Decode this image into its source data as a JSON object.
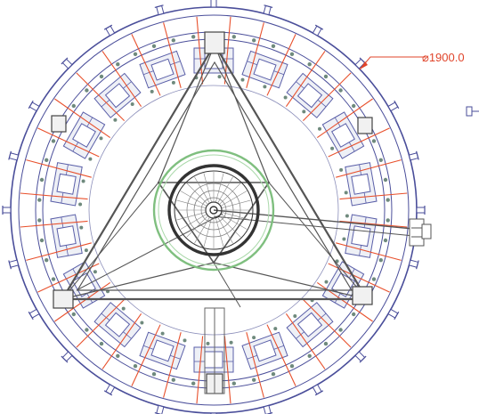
{
  "drawing": {
    "dimension_label": "⌀1900.0",
    "colors": {
      "background": "#ffffff",
      "ring_stroke": "#4a4e9a",
      "frame_stroke": "#555555",
      "module_fill": "#eef0f6",
      "module_stroke": "#5a5fa8",
      "rib_stroke": "#e8502c",
      "bolt_fill": "#6f8a7d",
      "inner_ring": "#7fbf7f",
      "hub_stroke": "#333333",
      "dimension": "#e0442a"
    },
    "icons": [
      "bolt-icon",
      "connector-icon"
    ]
  }
}
